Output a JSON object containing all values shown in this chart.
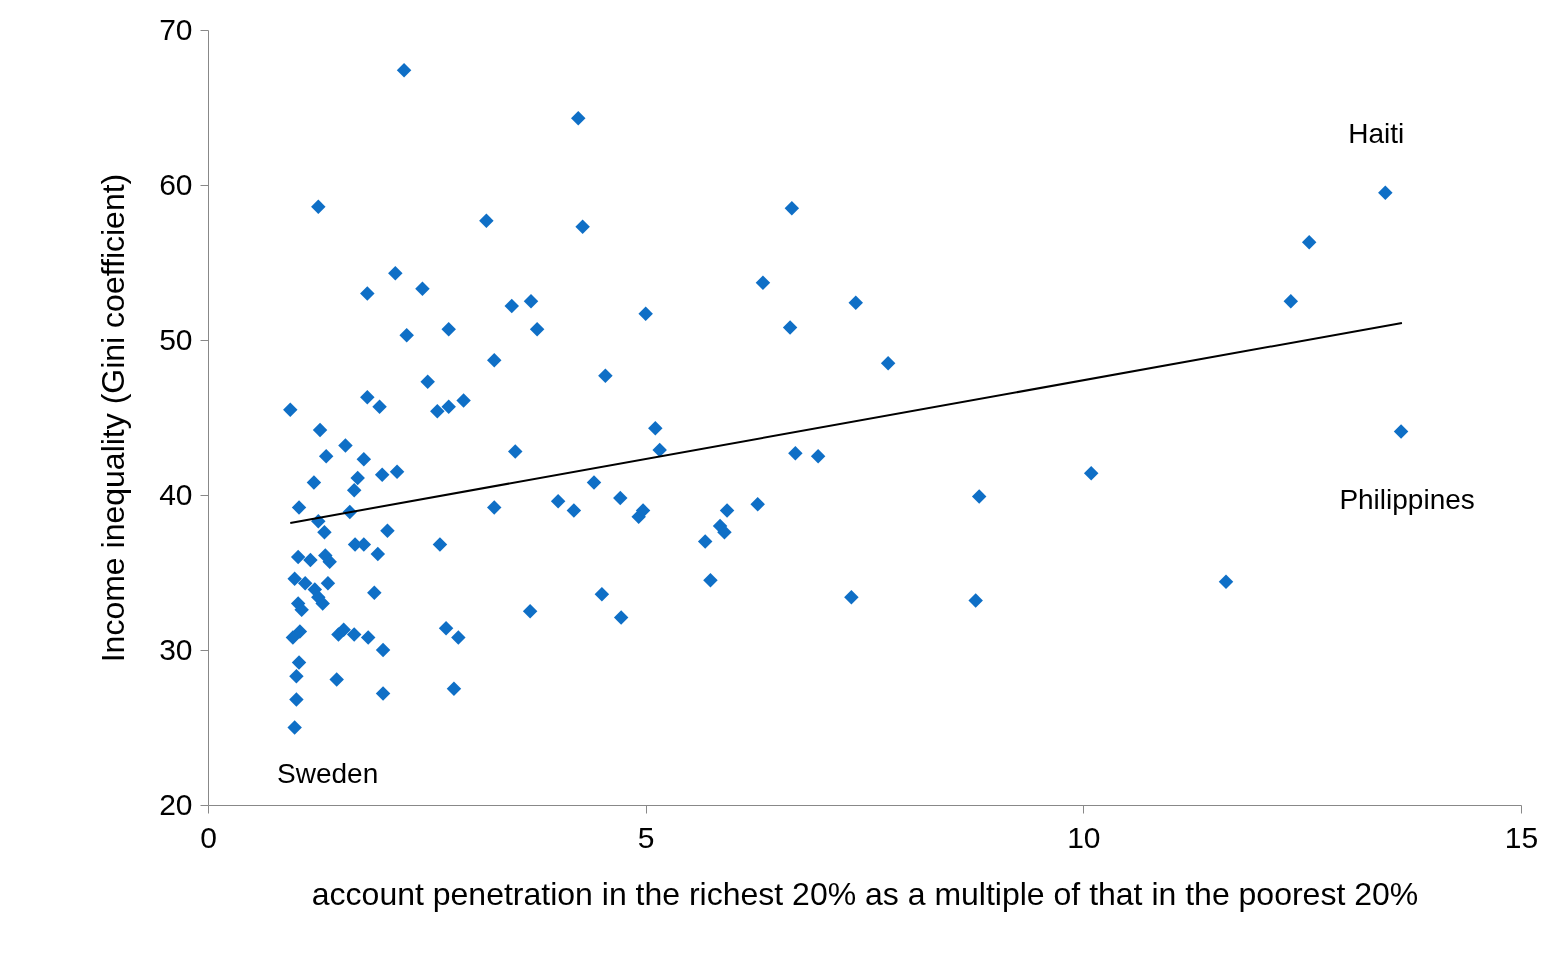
{
  "chart_data": {
    "type": "scatter",
    "xlabel": "account penetration in the richest 20% as a multiple of that in the poorest 20%",
    "ylabel": "Income inequality  (Gini coefficient)",
    "xlim": [
      0,
      15
    ],
    "xticks": [
      0,
      5,
      10,
      15
    ],
    "ylim": [
      20,
      70
    ],
    "yticks": [
      20,
      30,
      40,
      50,
      60,
      70
    ],
    "grid": false,
    "series": [
      {
        "color": "#0f6fc6",
        "marker": "diamond",
        "x": [
          0.94,
          2.24,
          1.26,
          4.23,
          4.28,
          3.18,
          6.67,
          2.14,
          1.82,
          2.45,
          2.27,
          2.75,
          3.47,
          3.69,
          3.76,
          3.27,
          5.0,
          6.34,
          6.65,
          7.4,
          7.77,
          2.51,
          4.54,
          1.82,
          1.96,
          2.62,
          2.75,
          2.92,
          1.28,
          1.57,
          1.35,
          1.78,
          2.16,
          1.99,
          1.71,
          1.21,
          1.67,
          1.04,
          1.62,
          1.26,
          1.33,
          2.05,
          1.68,
          1.78,
          1.94,
          2.65,
          1.03,
          1.17,
          1.34,
          1.39,
          0.99,
          1.11,
          1.22,
          1.37,
          1.26,
          1.31,
          1.03,
          1.07,
          1.9,
          3.51,
          4.0,
          4.18,
          4.41,
          3.27,
          4.71,
          4.92,
          4.97,
          5.11,
          5.16,
          5.68,
          5.85,
          5.9,
          5.93,
          6.28,
          6.71,
          6.97,
          5.74,
          7.35,
          8.81,
          8.77,
          10.09,
          11.63,
          12.37,
          12.58,
          13.45,
          13.63,
          3.68,
          4.5,
          4.72,
          0.97,
          1.05,
          1.49,
          1.55,
          1.67,
          1.83,
          2.0,
          2.72,
          2.86,
          1.04,
          1.01,
          1.47,
          1.01,
          2.0,
          2.81,
          0.99
        ],
        "values": [
          45.5,
          67.4,
          58.6,
          64.3,
          57.3,
          57.7,
          58.5,
          54.3,
          53.0,
          53.3,
          50.3,
          50.7,
          52.2,
          52.5,
          50.7,
          48.7,
          51.7,
          53.7,
          50.8,
          52.4,
          48.5,
          47.3,
          47.7,
          46.3,
          45.7,
          45.4,
          45.7,
          46.1,
          44.2,
          43.2,
          42.5,
          42.3,
          41.5,
          41.3,
          41.1,
          40.8,
          40.3,
          39.2,
          38.9,
          38.3,
          37.6,
          37.7,
          36.8,
          36.8,
          36.2,
          36.8,
          36.0,
          35.8,
          36.1,
          35.7,
          34.6,
          34.3,
          33.9,
          34.3,
          33.4,
          33.0,
          33.0,
          32.6,
          33.7,
          42.8,
          39.6,
          39.0,
          40.8,
          39.2,
          39.8,
          38.6,
          39.0,
          44.3,
          42.9,
          37.0,
          38.0,
          37.6,
          39.0,
          39.4,
          42.7,
          42.5,
          34.5,
          33.4,
          39.9,
          33.2,
          41.4,
          34.4,
          52.5,
          56.3,
          59.5,
          44.1,
          32.5,
          33.6,
          32.1,
          30.8,
          31.2,
          31.0,
          31.3,
          31.0,
          30.8,
          30.0,
          31.4,
          30.8,
          29.2,
          28.3,
          28.1,
          26.8,
          27.2,
          27.5,
          25.0
        ]
      },
      {
        "type": "line",
        "color": "#000000",
        "marker": "none",
        "line_style": "solid",
        "x": [
          0.94,
          13.64
        ],
        "values": [
          38.2,
          51.1
        ]
      }
    ],
    "annotations": [
      {
        "text": "Haiti",
        "x": 13.45,
        "y": 59.5
      },
      {
        "text": "Philippines",
        "x": 13.63,
        "y": 44.1
      },
      {
        "text": "Sweden",
        "x": 0.99,
        "y": 25.0
      }
    ]
  }
}
